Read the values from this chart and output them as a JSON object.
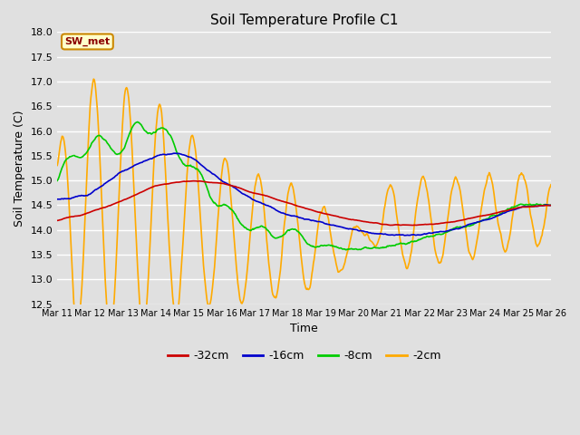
{
  "title": "Soil Temperature Profile C1",
  "xlabel": "Time",
  "ylabel": "Soil Temperature (C)",
  "ylim": [
    12.5,
    18.0
  ],
  "yticks": [
    12.5,
    13.0,
    13.5,
    14.0,
    14.5,
    15.0,
    15.5,
    16.0,
    16.5,
    17.0,
    17.5,
    18.0
  ],
  "bg_color": "#e0e0e0",
  "legend_label": "SW_met",
  "legend_text_color": "#8B0000",
  "legend_box_facecolor": "#ffffcc",
  "legend_box_edgecolor": "#cc8800",
  "series": {
    "-32cm": {
      "color": "#cc0000",
      "linewidth": 1.2
    },
    "-16cm": {
      "color": "#0000cc",
      "linewidth": 1.2
    },
    "-8cm": {
      "color": "#00cc00",
      "linewidth": 1.2
    },
    "-2cm": {
      "color": "#ffaa00",
      "linewidth": 1.2
    }
  },
  "xtick_labels": [
    "Mar 11",
    "Mar 12",
    "Mar 13",
    "Mar 14",
    "Mar 15",
    "Mar 16",
    "Mar 17",
    "Mar 18",
    "Mar 19",
    "Mar 20",
    "Mar 21",
    "Mar 22",
    "Mar 23",
    "Mar 24",
    "Mar 25",
    "Mar 26"
  ],
  "n_points": 720,
  "days": 15
}
